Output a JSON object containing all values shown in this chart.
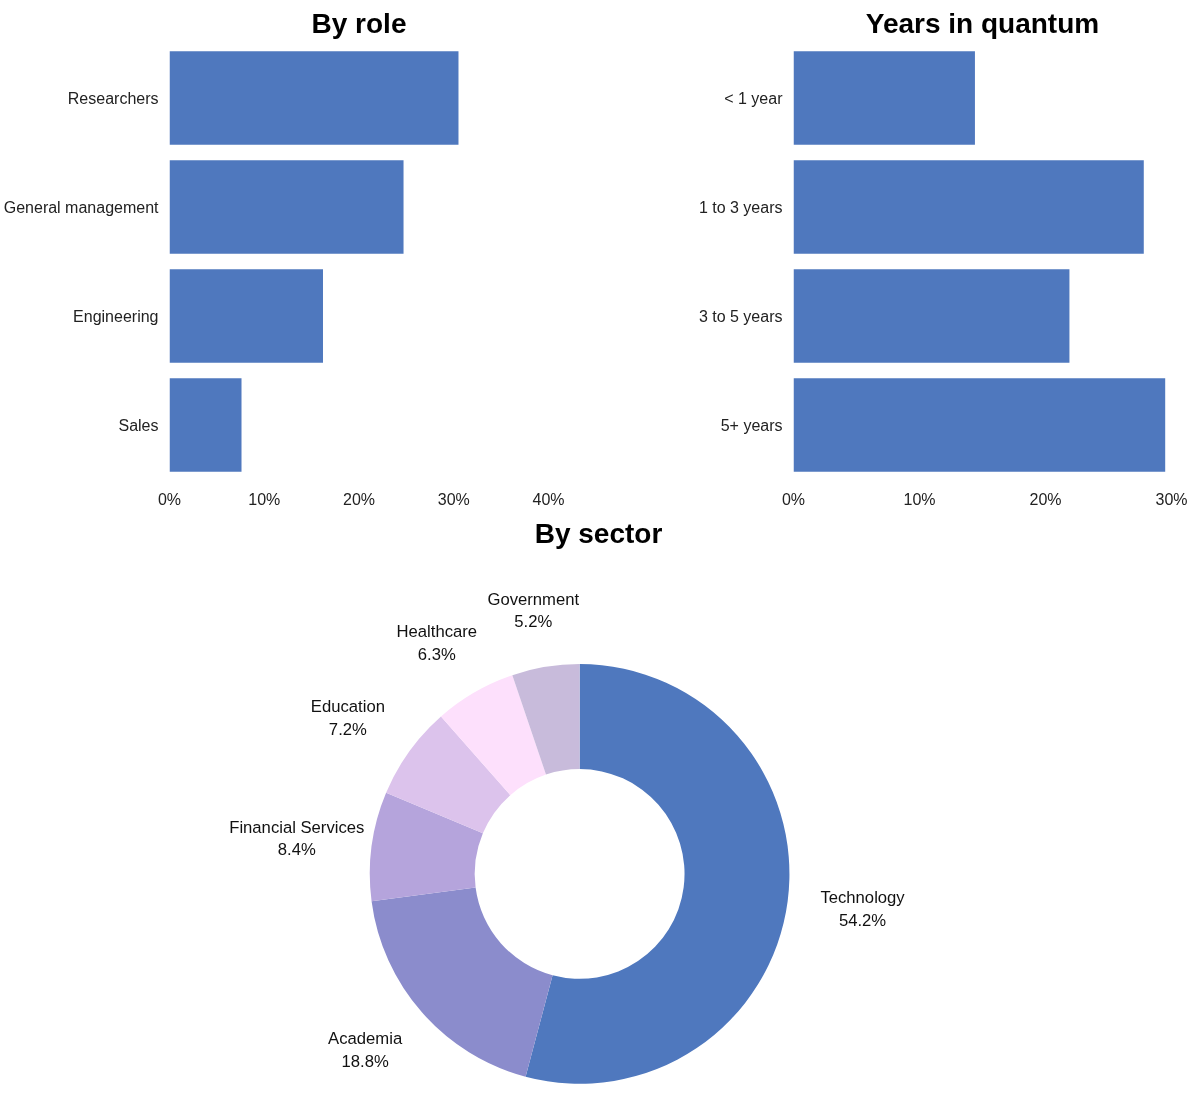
{
  "chart_data": [
    {
      "type": "bar",
      "title": "By role",
      "orientation": "horizontal",
      "categories": [
        "Researchers",
        "General management",
        "Engineering",
        "Sales"
      ],
      "values": [
        30.5,
        24.7,
        16.2,
        7.6
      ],
      "color": "#4f78be",
      "xlim": [
        0,
        40
      ],
      "xticks": [
        {
          "value": 0,
          "label": "0%"
        },
        {
          "value": 10,
          "label": "10%"
        },
        {
          "value": 20,
          "label": "20%"
        },
        {
          "value": 30,
          "label": "30%"
        },
        {
          "value": 40,
          "label": "40%"
        }
      ],
      "grid": false
    },
    {
      "type": "bar",
      "title": "Years in quantum",
      "orientation": "horizontal",
      "categories": [
        "< 1 year",
        "1 to 3 years",
        "3 to 5 years",
        "5+ years"
      ],
      "values": [
        14.4,
        27.8,
        21.9,
        29.5
      ],
      "color": "#4f78be",
      "xlim": [
        0,
        30
      ],
      "xticks": [
        {
          "value": 0,
          "label": "0%"
        },
        {
          "value": 10,
          "label": "10%"
        },
        {
          "value": 20,
          "label": "20%"
        },
        {
          "value": 30,
          "label": "30%"
        }
      ],
      "grid": false
    },
    {
      "type": "donut",
      "title": "By sector",
      "categories": [
        "Technology",
        "Academia",
        "Financial Services",
        "Education",
        "Healthcare",
        "Government"
      ],
      "values": [
        54.2,
        18.8,
        8.4,
        7.2,
        6.3,
        5.2
      ],
      "colors": [
        "#4f78be",
        "#8b8ccc",
        "#b5a4dc",
        "#dcc3ec",
        "#fde0fc",
        "#c8bbdb"
      ],
      "value_labels": [
        "54.2%",
        "18.8%",
        "8.4%",
        "7.2%",
        "6.3%",
        "5.2%"
      ]
    }
  ]
}
